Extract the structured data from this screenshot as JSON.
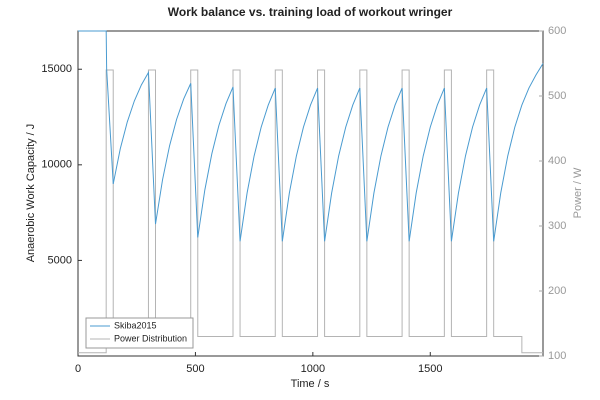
{
  "chart_data": {
    "type": "line",
    "title": "Work balance vs. training load of workout  wringer",
    "xlabel": "Time / s",
    "ylabel": "Anaerobic Work Capacity / J",
    "y2label": "Power / W",
    "xlim": [
      0,
      1980
    ],
    "xticks": [
      0,
      500,
      1000,
      1500
    ],
    "ylim": [
      0,
      17000
    ],
    "yticks": [
      5000,
      10000,
      15000
    ],
    "y2lim": [
      100,
      600
    ],
    "y2ticks": [
      100,
      200,
      300,
      400,
      500,
      600
    ],
    "legend": "lower left",
    "series": [
      {
        "name": "Skiba2015",
        "color": "#4a9bd0",
        "axis": "y",
        "x": [
          0,
          120,
          122,
          150,
          180,
          210,
          240,
          270,
          300,
          330,
          360,
          390,
          420,
          450,
          480,
          510,
          540,
          570,
          600,
          630,
          660,
          690,
          720,
          750,
          780,
          810,
          840,
          870,
          900,
          930,
          960,
          990,
          1020,
          1050,
          1080,
          1110,
          1140,
          1170,
          1200,
          1230,
          1260,
          1290,
          1320,
          1350,
          1380,
          1410,
          1440,
          1470,
          1500,
          1530,
          1560,
          1590,
          1620,
          1650,
          1680,
          1710,
          1740,
          1770,
          1800,
          1830,
          1860,
          1890,
          1920,
          1950,
          1980
        ],
        "values": [
          17000,
          17000,
          15000,
          9000,
          10840,
          12250,
          13344,
          14184,
          14830,
          6900,
          9223,
          11000,
          12384,
          13445,
          14260,
          6200,
          8684,
          10585,
          12064,
          13198,
          14073,
          6000,
          8525,
          10470,
          11970,
          13127,
          14015,
          6000,
          8525,
          10470,
          11970,
          13127,
          14015,
          6000,
          8525,
          10470,
          11970,
          13127,
          14015,
          6000,
          8525,
          10470,
          11970,
          13127,
          14015,
          6000,
          8525,
          10470,
          11970,
          13127,
          14015,
          6000,
          8525,
          10470,
          11970,
          13127,
          14015,
          6000,
          8525,
          10470,
          11970,
          13127,
          14015,
          14700,
          15300
        ]
      },
      {
        "name": "Power Distribution",
        "color": "#b4b4b4",
        "axis": "y2",
        "x": [
          0,
          120,
          120,
          150,
          150,
          300,
          300,
          330,
          330,
          480,
          480,
          510,
          510,
          660,
          660,
          690,
          690,
          840,
          840,
          870,
          870,
          1020,
          1020,
          1050,
          1050,
          1200,
          1200,
          1230,
          1230,
          1380,
          1380,
          1410,
          1410,
          1560,
          1560,
          1590,
          1590,
          1740,
          1740,
          1770,
          1770,
          1890,
          1890,
          1980
        ],
        "values": [
          105,
          105,
          540,
          540,
          130,
          130,
          540,
          540,
          130,
          130,
          540,
          540,
          130,
          130,
          540,
          540,
          130,
          130,
          540,
          540,
          130,
          130,
          540,
          540,
          130,
          130,
          540,
          540,
          130,
          130,
          540,
          540,
          130,
          130,
          540,
          540,
          130,
          130,
          540,
          540,
          130,
          130,
          105,
          105
        ]
      }
    ]
  }
}
